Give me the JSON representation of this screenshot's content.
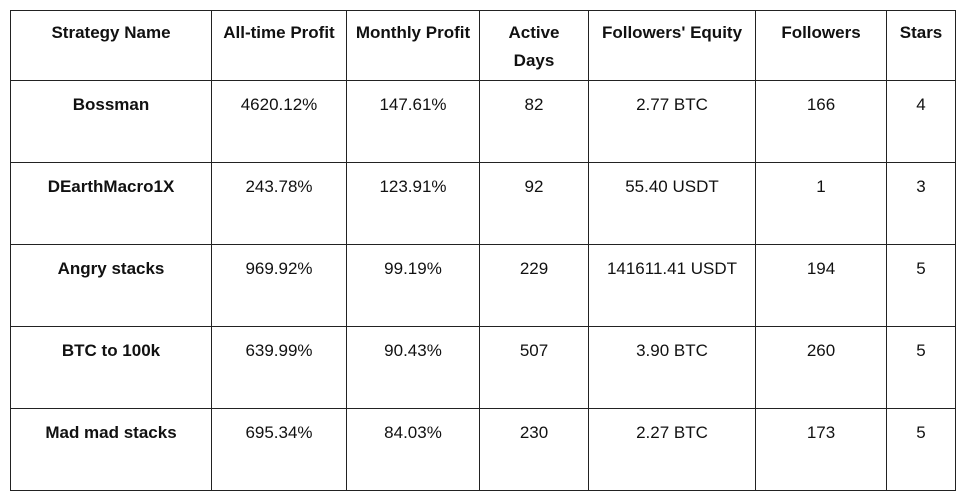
{
  "table": {
    "columns": [
      "Strategy Name",
      "All-time Profit",
      "Monthly Profit",
      "Active Days",
      "Followers' Equity",
      "Followers",
      "Stars"
    ],
    "rows": [
      [
        "Bossman",
        "4620.12%",
        "147.61%",
        "82",
        "2.77 BTC",
        "166",
        "4"
      ],
      [
        "DEarthMacro1X",
        "243.78%",
        "123.91%",
        "92",
        "55.40 USDT",
        "1",
        "3"
      ],
      [
        "Angry stacks",
        "969.92%",
        "99.19%",
        "229",
        "141611.41 USDT",
        "194",
        "5"
      ],
      [
        "BTC to 100k",
        "639.99%",
        "90.43%",
        "507",
        "3.90 BTC",
        "260",
        "5"
      ],
      [
        "Mad mad stacks",
        "695.34%",
        "84.03%",
        "230",
        "2.27 BTC",
        "173",
        "5"
      ]
    ]
  }
}
